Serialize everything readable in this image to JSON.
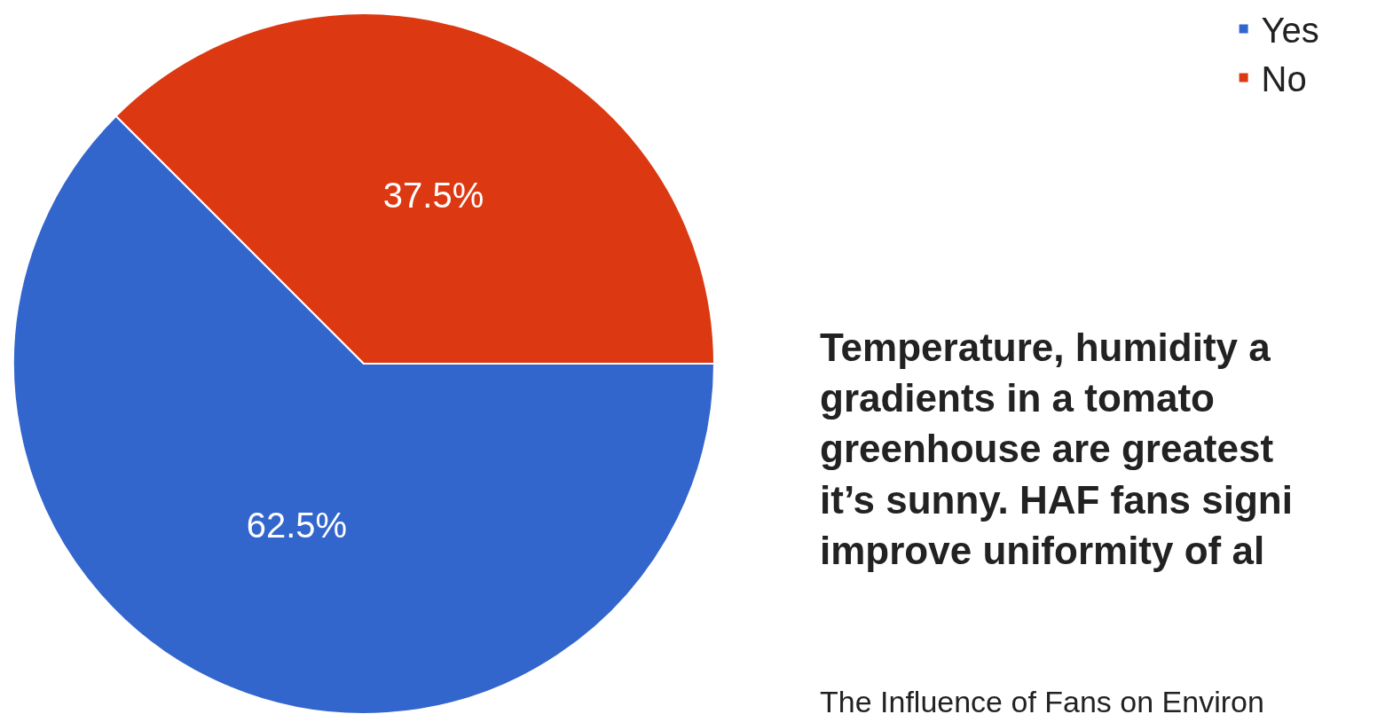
{
  "chart_data": {
    "type": "pie",
    "categories": [
      "Yes",
      "No"
    ],
    "values": [
      62.5,
      37.5
    ],
    "colors": [
      "#3366cc",
      "#dc3912"
    ],
    "value_labels": [
      "62.5%",
      "37.5%"
    ],
    "legend": "top right",
    "annotations": [
      "Temperature, humidity a\ngradients in a tomato\ngreenhouse are greatest\nit’s sunny. HAF fans signi\nimprove uniformity of al",
      "The Influence of Fans on Environ"
    ]
  }
}
